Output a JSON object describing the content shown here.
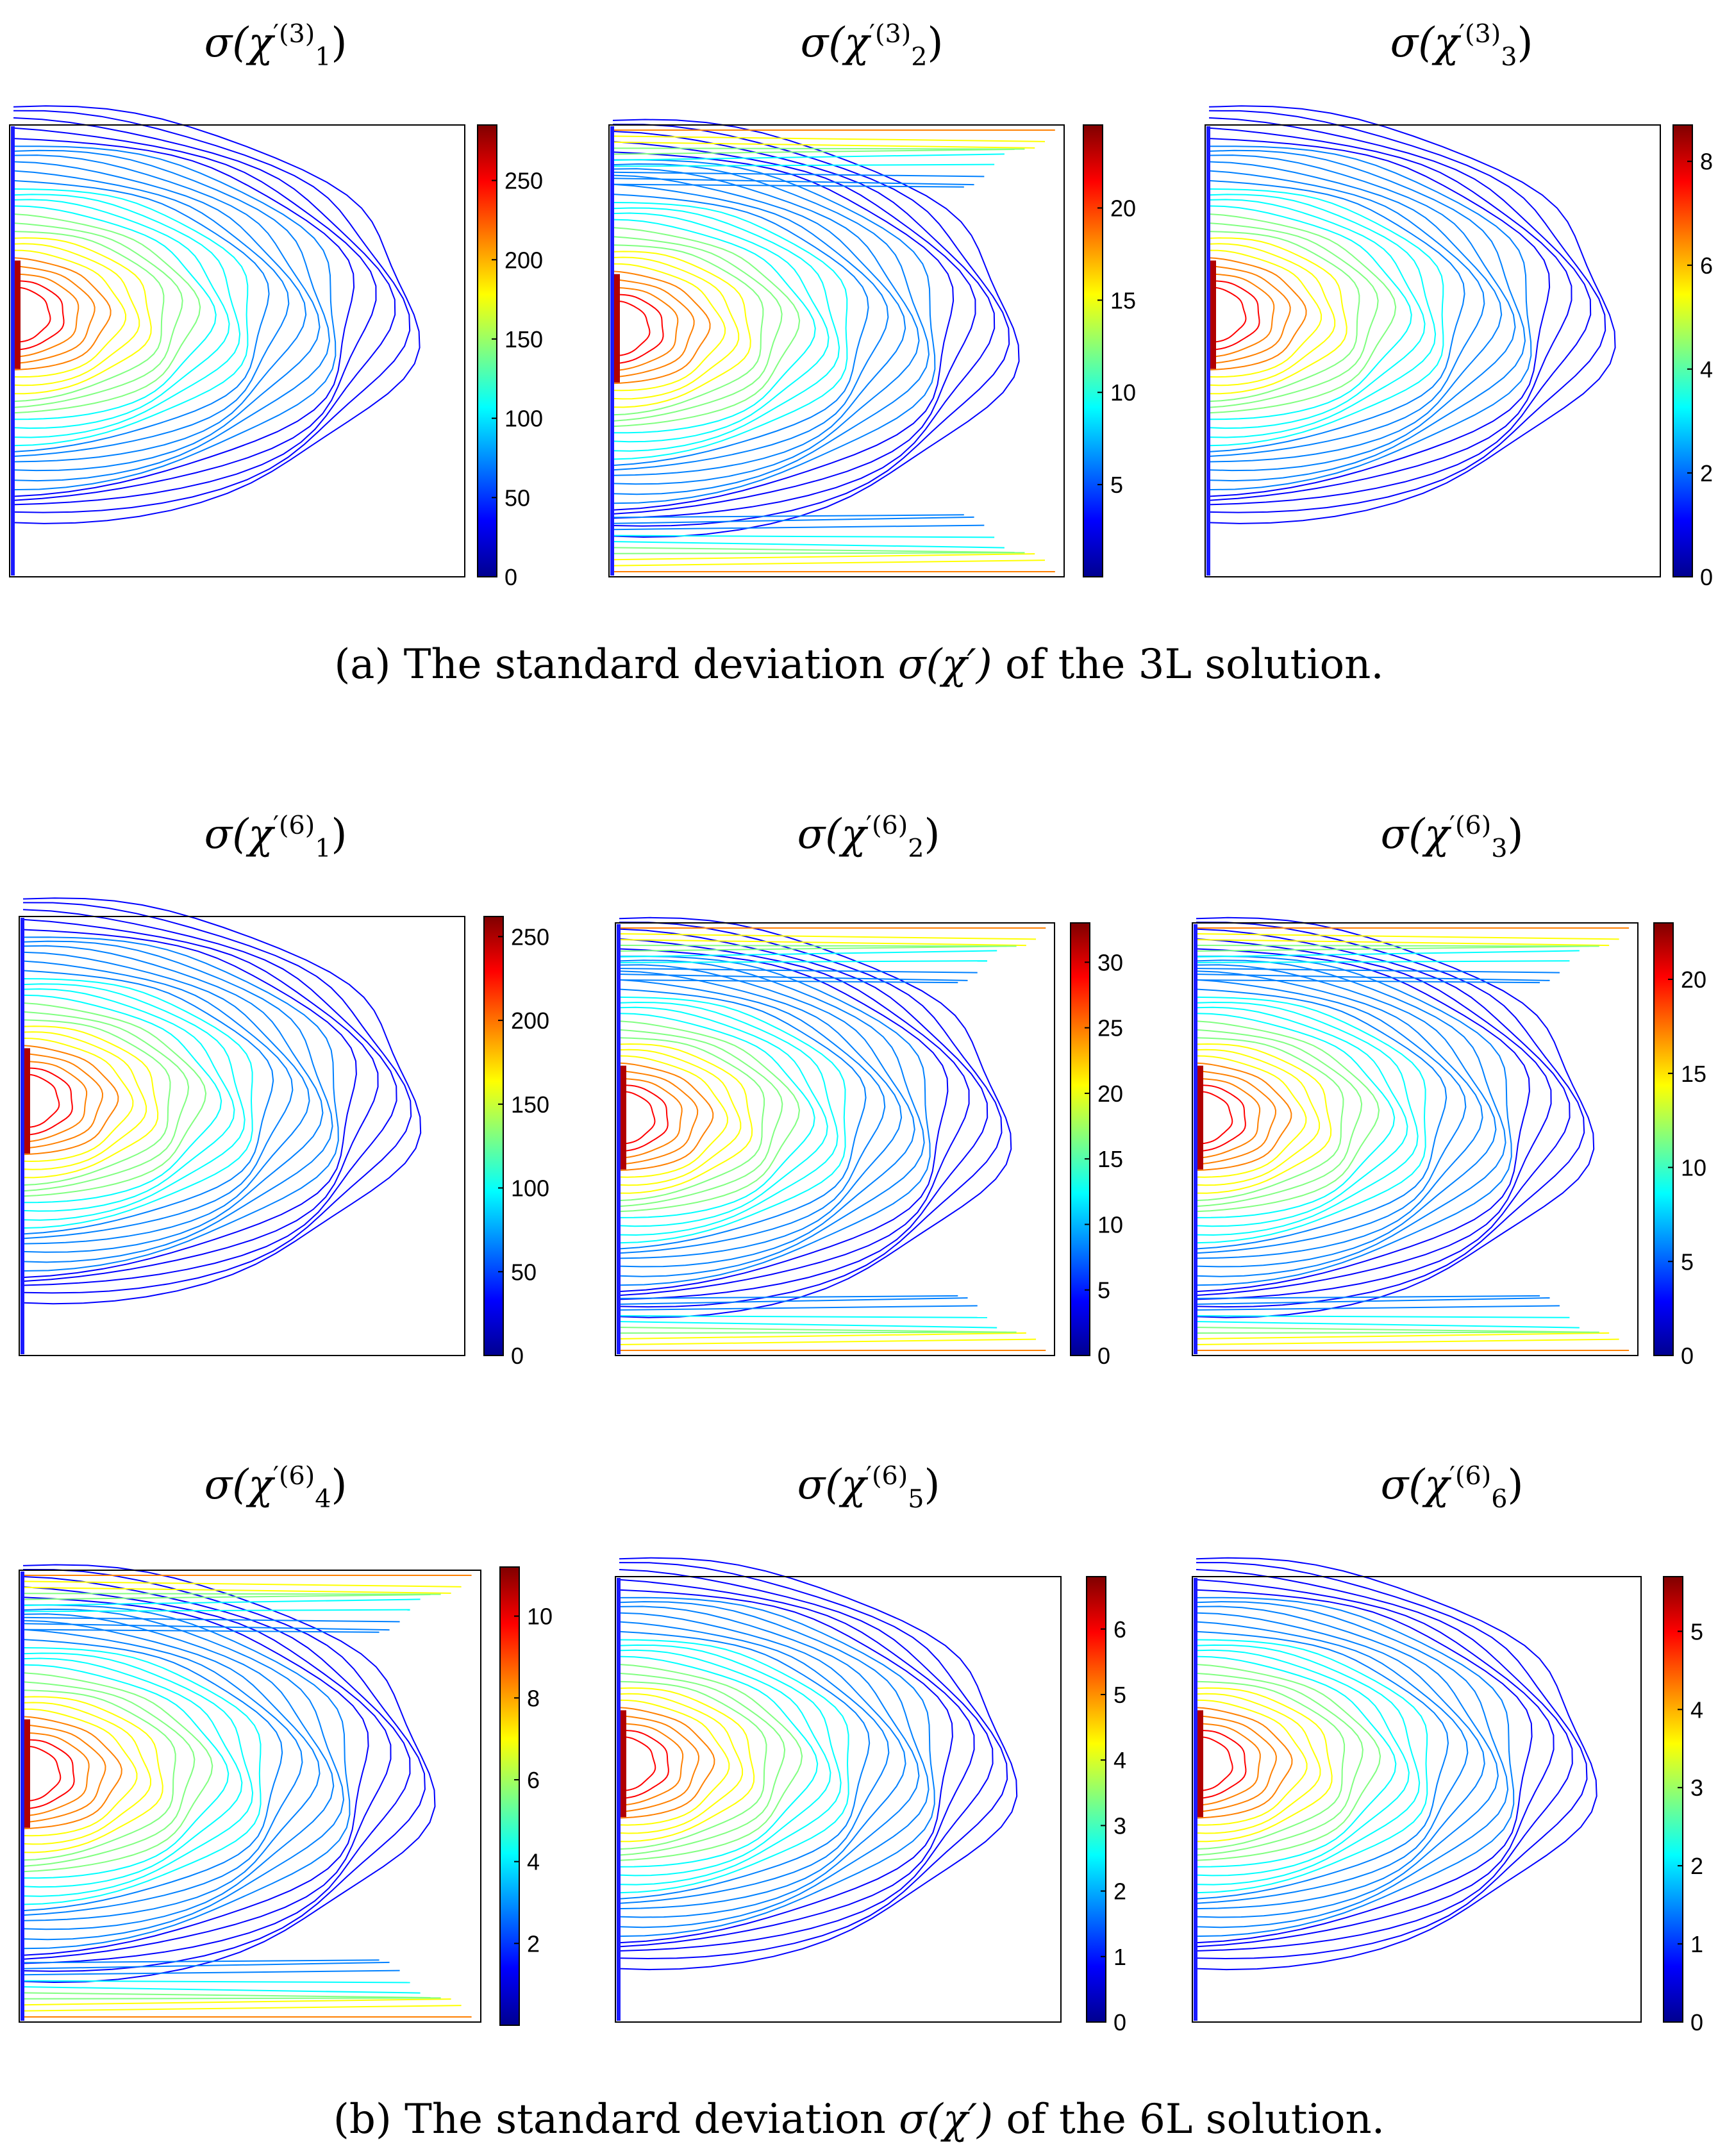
{
  "captions": {
    "a": {
      "prefix": "(a) The standard deviation ",
      "sym": "σ(χ′)",
      "suffix": " of the 3L solution."
    },
    "b": {
      "prefix": "(b) The standard deviation ",
      "sym": "σ(χ′)",
      "suffix": " of the 6L solution."
    }
  },
  "colormap": [
    "#00008f",
    "#0000ff",
    "#0080ff",
    "#00ffff",
    "#80ff80",
    "#ffff00",
    "#ff8000",
    "#ff0000",
    "#800000"
  ],
  "panels": [
    {
      "id": "a1",
      "title": {
        "pre": "σ(χ",
        "sup": "′(3)",
        "sub": "1",
        "post": ")"
      },
      "cbar_max": 285,
      "ticks": [
        "250",
        "200",
        "150",
        "100",
        "50",
        "0"
      ],
      "tick_values": [
        250,
        200,
        150,
        100,
        50,
        0
      ],
      "pattern": "jet"
    },
    {
      "id": "a2",
      "title": {
        "pre": "σ(χ",
        "sup": "′(3)",
        "sub": "2",
        "post": ")"
      },
      "cbar_max": 24.5,
      "ticks": [
        "20",
        "15",
        "10",
        "5"
      ],
      "tick_values": [
        20,
        15,
        10,
        5
      ],
      "pattern": "full"
    },
    {
      "id": "a3",
      "title": {
        "pre": "σ(χ",
        "sup": "′(3)",
        "sub": "3",
        "post": ")"
      },
      "cbar_max": 8.7,
      "ticks": [
        "8",
        "6",
        "4",
        "2",
        "0"
      ],
      "tick_values": [
        8,
        6,
        4,
        2,
        0
      ],
      "pattern": "jet"
    },
    {
      "id": "b1",
      "title": {
        "pre": "σ(χ",
        "sup": "′(6)",
        "sub": "1",
        "post": ")"
      },
      "cbar_max": 262,
      "ticks": [
        "250",
        "200",
        "150",
        "100",
        "50",
        "0"
      ],
      "tick_values": [
        250,
        200,
        150,
        100,
        50,
        0
      ],
      "pattern": "jet"
    },
    {
      "id": "b2",
      "title": {
        "pre": "σ(χ",
        "sup": "′(6)",
        "sub": "2",
        "post": ")"
      },
      "cbar_max": 33,
      "ticks": [
        "30",
        "25",
        "20",
        "15",
        "10",
        "5",
        "0"
      ],
      "tick_values": [
        30,
        25,
        20,
        15,
        10,
        5,
        0
      ],
      "pattern": "full"
    },
    {
      "id": "b3",
      "title": {
        "pre": "σ(χ",
        "sup": "′(6)",
        "sub": "3",
        "post": ")"
      },
      "cbar_max": 23,
      "ticks": [
        "20",
        "15",
        "10",
        "5",
        "0"
      ],
      "tick_values": [
        20,
        15,
        10,
        5,
        0
      ],
      "pattern": "full"
    },
    {
      "id": "b4",
      "title": {
        "pre": "σ(χ",
        "sup": "′(6)",
        "sub": "4",
        "post": ")"
      },
      "cbar_max": 11.2,
      "ticks": [
        "10",
        "8",
        "6",
        "4",
        "2"
      ],
      "tick_values": [
        10,
        8,
        6,
        4,
        2
      ],
      "pattern": "full"
    },
    {
      "id": "b5",
      "title": {
        "pre": "σ(χ",
        "sup": "′(6)",
        "sub": "5",
        "post": ")"
      },
      "cbar_max": 6.8,
      "ticks": [
        "6",
        "5",
        "4",
        "3",
        "2",
        "1",
        "0"
      ],
      "tick_values": [
        6,
        5,
        4,
        3,
        2,
        1,
        0
      ],
      "pattern": "jet"
    },
    {
      "id": "b6",
      "title": {
        "pre": "σ(χ",
        "sup": "′(6)",
        "sub": "6",
        "post": ")"
      },
      "cbar_max": 5.7,
      "ticks": [
        "5",
        "4",
        "3",
        "2",
        "1",
        "0"
      ],
      "tick_values": [
        5,
        4,
        3,
        2,
        1,
        0
      ],
      "pattern": "jet"
    }
  ]
}
